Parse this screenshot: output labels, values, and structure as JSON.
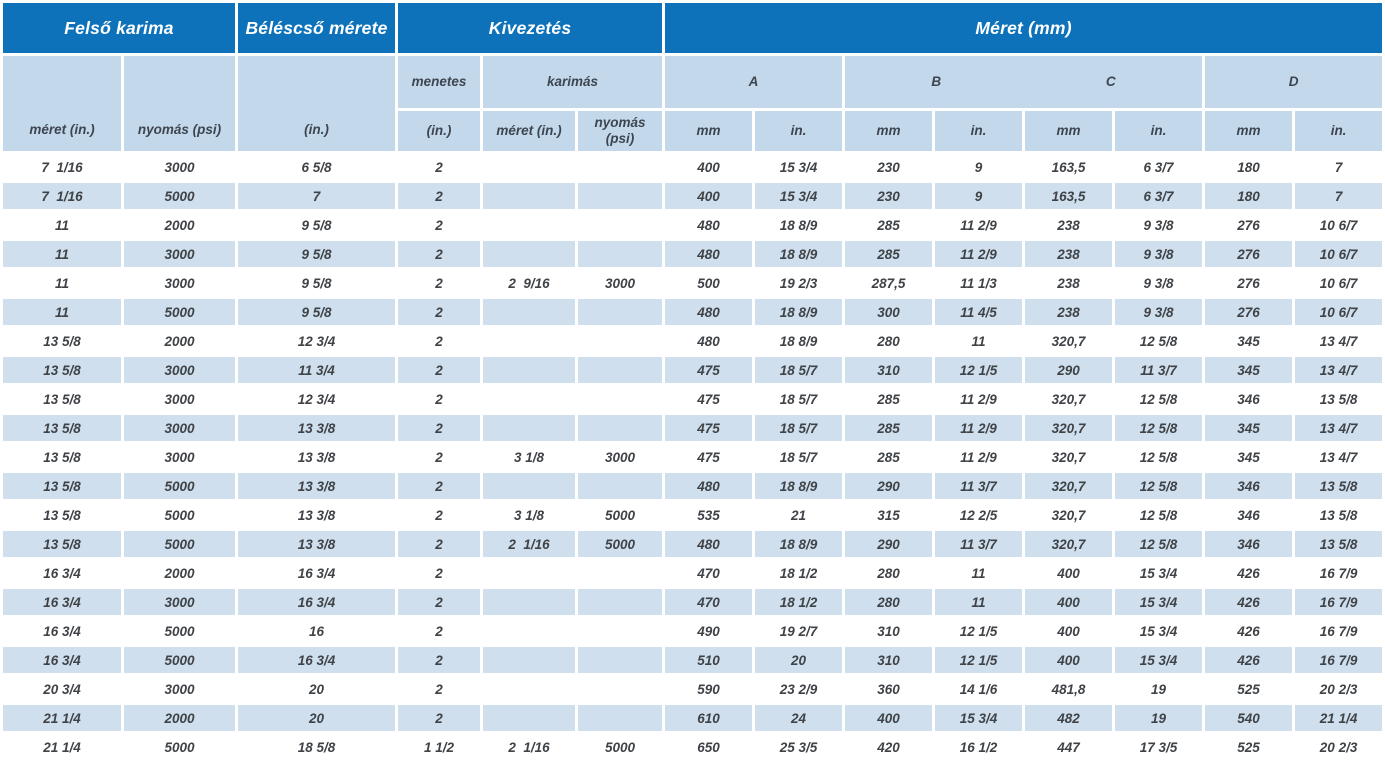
{
  "colors": {
    "header_blue": "#0d72b9",
    "header_light_blue": "#c4d8eb",
    "row_alt_blue": "#cfdfee",
    "row_white": "#ffffff",
    "data_text": "#3f4347",
    "header_text": "#3d4650",
    "header_top_text": "#ffffff"
  },
  "chart_data": {
    "type": "table",
    "headers": {
      "felso_karima": "Felső karima",
      "belescso_merete": "Béléscső mérete",
      "kivezetes": "Kivezetés",
      "meret_mm": "Méret (mm)",
      "meret_in": "méret (in.)",
      "nyomas_psi": "nyomás (psi)",
      "in_unit": "(in.)",
      "menetes": "menetes",
      "karimas": "karimás",
      "karimas_meret": "méret (in.)",
      "karimas_nyomas": "nyomás (psi)",
      "dim_a": "A",
      "dim_b": "B",
      "dim_c": "C",
      "dim_d": "D",
      "mm": "mm",
      "inch": "in."
    },
    "rows": [
      [
        "7  1/16",
        "3000",
        "6 5/8",
        "2",
        "",
        "",
        "400",
        "15 3/4",
        "230",
        "9",
        "163,5",
        "6 3/7",
        "180",
        "7"
      ],
      [
        "7  1/16",
        "5000",
        "7",
        "2",
        "",
        "",
        "400",
        "15 3/4",
        "230",
        "9",
        "163,5",
        "6 3/7",
        "180",
        "7"
      ],
      [
        "11",
        "2000",
        "9 5/8",
        "2",
        "",
        "",
        "480",
        "18 8/9",
        "285",
        "11 2/9",
        "238",
        "9 3/8",
        "276",
        "10 6/7"
      ],
      [
        "11",
        "3000",
        "9 5/8",
        "2",
        "",
        "",
        "480",
        "18 8/9",
        "285",
        "11 2/9",
        "238",
        "9 3/8",
        "276",
        "10 6/7"
      ],
      [
        "11",
        "3000",
        "9 5/8",
        "2",
        "2  9/16",
        "3000",
        "500",
        "19 2/3",
        "287,5",
        "11 1/3",
        "238",
        "9 3/8",
        "276",
        "10 6/7"
      ],
      [
        "11",
        "5000",
        "9 5/8",
        "2",
        "",
        "",
        "480",
        "18 8/9",
        "300",
        "11 4/5",
        "238",
        "9 3/8",
        "276",
        "10 6/7"
      ],
      [
        "13 5/8",
        "2000",
        "12 3/4",
        "2",
        "",
        "",
        "480",
        "18 8/9",
        "280",
        "11",
        "320,7",
        "12 5/8",
        "345",
        "13 4/7"
      ],
      [
        "13 5/8",
        "3000",
        "11 3/4",
        "2",
        "",
        "",
        "475",
        "18 5/7",
        "310",
        "12 1/5",
        "290",
        "11 3/7",
        "345",
        "13 4/7"
      ],
      [
        "13 5/8",
        "3000",
        "12 3/4",
        "2",
        "",
        "",
        "475",
        "18 5/7",
        "285",
        "11 2/9",
        "320,7",
        "12 5/8",
        "346",
        "13 5/8"
      ],
      [
        "13 5/8",
        "3000",
        "13 3/8",
        "2",
        "",
        "",
        "475",
        "18 5/7",
        "285",
        "11 2/9",
        "320,7",
        "12 5/8",
        "345",
        "13 4/7"
      ],
      [
        "13 5/8",
        "3000",
        "13 3/8",
        "2",
        "3 1/8",
        "3000",
        "475",
        "18 5/7",
        "285",
        "11 2/9",
        "320,7",
        "12 5/8",
        "345",
        "13 4/7"
      ],
      [
        "13 5/8",
        "5000",
        "13 3/8",
        "2",
        "",
        "",
        "480",
        "18 8/9",
        "290",
        "11 3/7",
        "320,7",
        "12 5/8",
        "346",
        "13 5/8"
      ],
      [
        "13 5/8",
        "5000",
        "13 3/8",
        "2",
        "3 1/8",
        "5000",
        "535",
        "21",
        "315",
        "12 2/5",
        "320,7",
        "12 5/8",
        "346",
        "13 5/8"
      ],
      [
        "13 5/8",
        "5000",
        "13 3/8",
        "2",
        "2  1/16",
        "5000",
        "480",
        "18 8/9",
        "290",
        "11 3/7",
        "320,7",
        "12 5/8",
        "346",
        "13 5/8"
      ],
      [
        "16 3/4",
        "2000",
        "16 3/4",
        "2",
        "",
        "",
        "470",
        "18 1/2",
        "280",
        "11",
        "400",
        "15 3/4",
        "426",
        "16 7/9"
      ],
      [
        "16 3/4",
        "3000",
        "16 3/4",
        "2",
        "",
        "",
        "470",
        "18 1/2",
        "280",
        "11",
        "400",
        "15 3/4",
        "426",
        "16 7/9"
      ],
      [
        "16 3/4",
        "5000",
        "16",
        "2",
        "",
        "",
        "490",
        "19 2/7",
        "310",
        "12 1/5",
        "400",
        "15 3/4",
        "426",
        "16 7/9"
      ],
      [
        "16 3/4",
        "5000",
        "16 3/4",
        "2",
        "",
        "",
        "510",
        "20",
        "310",
        "12 1/5",
        "400",
        "15 3/4",
        "426",
        "16 7/9"
      ],
      [
        "20 3/4",
        "3000",
        "20",
        "2",
        "",
        "",
        "590",
        "23 2/9",
        "360",
        "14 1/6",
        "481,8",
        "19",
        "525",
        "20 2/3"
      ],
      [
        "21 1/4",
        "2000",
        "20",
        "2",
        "",
        "",
        "610",
        "24",
        "400",
        "15 3/4",
        "482",
        "19",
        "540",
        "21 1/4"
      ],
      [
        "21 1/4",
        "5000",
        "18 5/8",
        "1 1/2",
        "2  1/16",
        "5000",
        "650",
        "25 3/5",
        "420",
        "16 1/2",
        "447",
        "17 3/5",
        "525",
        "20 2/3"
      ]
    ]
  }
}
